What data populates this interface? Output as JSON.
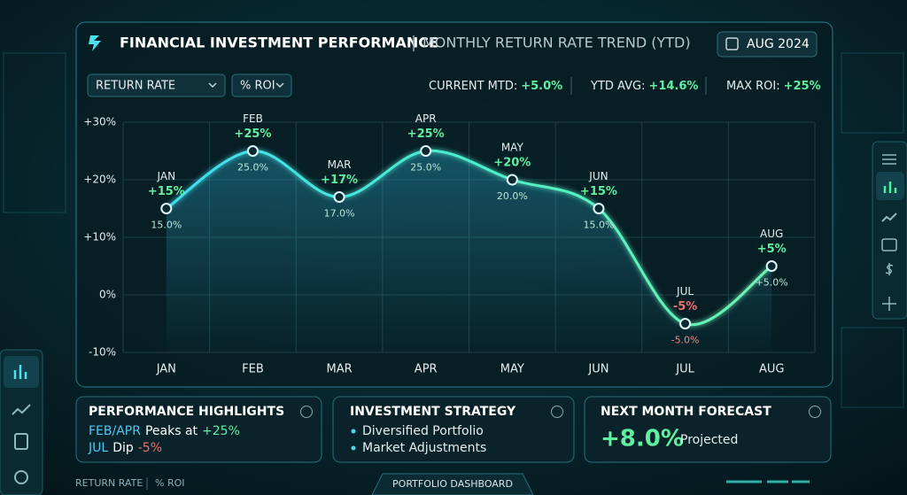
{
  "chart_data": {
    "type": "line",
    "title": "FINANCIAL INVESTMENT PERFORMANCE",
    "subtitle": "MONTHLY RETURN RATE TREND (YTD)",
    "categories": [
      "JAN",
      "FEB",
      "MAR",
      "APR",
      "MAY",
      "JUN",
      "JUL",
      "AUG"
    ],
    "series": [
      {
        "color": "#3fdcf2",
        "values": [
          15,
          25,
          17,
          25,
          20,
          15,
          -5,
          5
        ],
        "value_labels": [
          "+15%",
          "+25%",
          "+17%",
          "+25%",
          "+20%",
          "+15%",
          "-5%",
          "+5%"
        ],
        "value_labels_precise": [
          "15.0%",
          "25.0%",
          "17.0%",
          "25.0%",
          "20.0%",
          "15.0%",
          "-5.0%",
          "+5.0%"
        ]
      }
    ],
    "ylim": [
      -10,
      30
    ],
    "yticks": [
      {
        "value": -10,
        "label": "-10%"
      },
      {
        "value": 0,
        "label": "0%"
      },
      {
        "value": 10,
        "label": "+10%"
      },
      {
        "value": 20,
        "label": "+20%"
      },
      {
        "value": 30,
        "label": "+30%"
      }
    ],
    "grid": true
  },
  "header": {
    "date": "AUG 2024"
  },
  "controls": {
    "metric": "RETURN RATE",
    "unit": "% ROI"
  },
  "stats": [
    {
      "label": "CURRENT MTD:",
      "value": "+5.0%"
    },
    {
      "label": "YTD AVG:",
      "value": "+14.6%"
    },
    {
      "label": "MAX ROI:",
      "value": "+25%"
    }
  ],
  "cards": {
    "highlights": {
      "title": "PERFORMANCE HIGHLIGHTS",
      "line1": [
        "FEB/APR",
        "Peaks at",
        "+25%"
      ],
      "line2": [
        "JUL",
        "Dip",
        "-5%"
      ]
    },
    "strategy": {
      "title": "INVESTMENT STRATEGY",
      "items": [
        "Diversified Portfolio",
        "Market Adjustments"
      ]
    },
    "forecast": {
      "title": "NEXT MONTH FORECAST",
      "value": "+8.0%",
      "note": "Projected"
    }
  },
  "footer": {
    "left": [
      "RETURN RATE",
      "% ROI"
    ],
    "tab": "PORTFOLIO DASHBOARD"
  }
}
